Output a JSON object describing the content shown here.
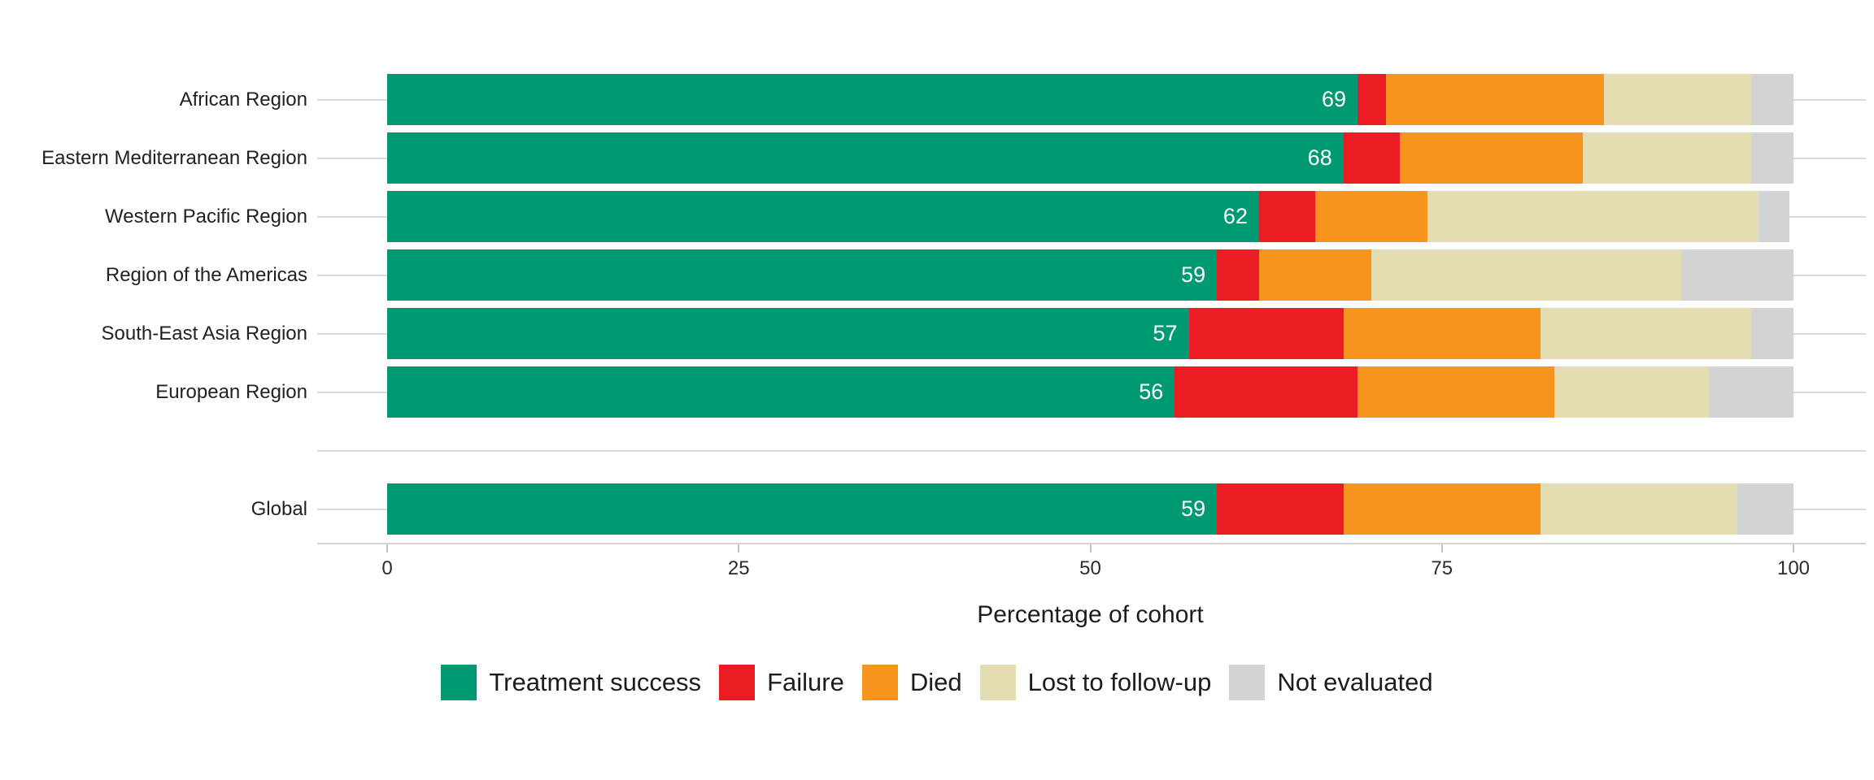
{
  "chart_data": {
    "type": "bar",
    "orientation": "horizontal",
    "stacked": true,
    "title": "",
    "xlabel": "Percentage of cohort",
    "ylabel": "",
    "xlim": [
      0,
      100
    ],
    "xticks": [
      0,
      25,
      50,
      75,
      100
    ],
    "grid": "horizontal-gridlines",
    "legend_position": "bottom",
    "categories": [
      "African Region",
      "Eastern Mediterranean Region",
      "Western Pacific Region",
      "Region of the Americas",
      "South-East Asia Region",
      "European Region",
      "Global"
    ],
    "gap_after_category": "European Region",
    "series": [
      {
        "name": "Treatment success",
        "color": "#009A72",
        "values": [
          69,
          68,
          62,
          59,
          57,
          56,
          59
        ]
      },
      {
        "name": "Failure",
        "color": "#EC1C24",
        "values": [
          2,
          4,
          4,
          3,
          11,
          13,
          9
        ]
      },
      {
        "name": "Died",
        "color": "#F7941E",
        "values": [
          15.5,
          13,
          8,
          8,
          14,
          14,
          14
        ]
      },
      {
        "name": "Lost to follow-up",
        "color": "#E4DDB2",
        "values": [
          10.5,
          12,
          23.5,
          22,
          15,
          11,
          14
        ]
      },
      {
        "name": "Not evaluated",
        "color": "#D2D3D4",
        "values": [
          3,
          3,
          2.2,
          8,
          3,
          6,
          4
        ]
      }
    ],
    "bar_value_labels": {
      "series": "Treatment success",
      "values": [
        69,
        68,
        62,
        59,
        57,
        56,
        59
      ]
    },
    "legend": [
      "Treatment success",
      "Failure",
      "Died",
      "Lost to follow-up",
      "Not evaluated"
    ]
  }
}
